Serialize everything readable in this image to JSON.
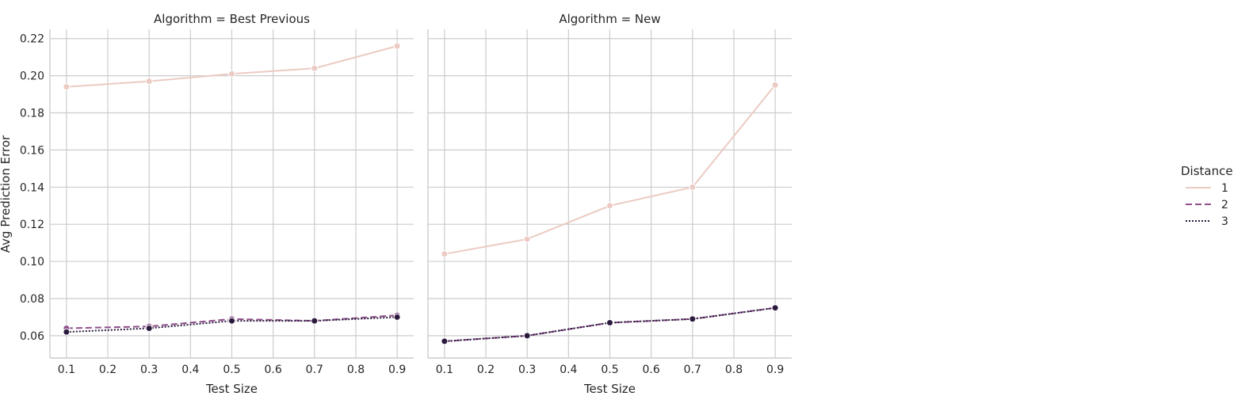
{
  "chart_data": {
    "type": "line",
    "ylabel": "Avg Prediction Error",
    "xlabel": "Test Size",
    "ylim": [
      0.048,
      0.225
    ],
    "xlim": [
      0.06,
      0.94
    ],
    "yticks": [
      "0.06",
      "0.08",
      "0.10",
      "0.12",
      "0.14",
      "0.16",
      "0.18",
      "0.20",
      "0.22"
    ],
    "xticks": [
      "0.1",
      "0.2",
      "0.3",
      "0.4",
      "0.5",
      "0.6",
      "0.7",
      "0.8",
      "0.9"
    ],
    "grid": true,
    "legend": {
      "title": "Distance",
      "placement": "right",
      "entries": [
        {
          "label": "1",
          "color": "#ebcbc3",
          "dash": "solid"
        },
        {
          "label": "2",
          "color": "#8e4f8a",
          "dash": "dashed"
        },
        {
          "label": "3",
          "color": "#2b1a3e",
          "dash": "dotted"
        }
      ]
    },
    "panels": [
      {
        "title": "Algorithm = Best Previous",
        "x": [
          0.1,
          0.3,
          0.5,
          0.7,
          0.9
        ],
        "series": [
          {
            "name": "1",
            "values": [
              0.194,
              0.197,
              0.201,
              0.204,
              0.216
            ]
          },
          {
            "name": "2",
            "values": [
              0.064,
              0.065,
              0.069,
              0.068,
              0.071
            ]
          },
          {
            "name": "3",
            "values": [
              0.062,
              0.064,
              0.068,
              0.068,
              0.07
            ]
          }
        ]
      },
      {
        "title": "Algorithm = New",
        "x": [
          0.1,
          0.3,
          0.5,
          0.7,
          0.9
        ],
        "series": [
          {
            "name": "1",
            "values": [
              0.104,
              0.112,
              0.13,
              0.14,
              0.195
            ]
          },
          {
            "name": "2",
            "values": [
              0.057,
              0.06,
              0.067,
              0.069,
              0.075
            ]
          },
          {
            "name": "3",
            "values": [
              0.057,
              0.06,
              0.067,
              0.069,
              0.075
            ]
          }
        ]
      }
    ]
  }
}
